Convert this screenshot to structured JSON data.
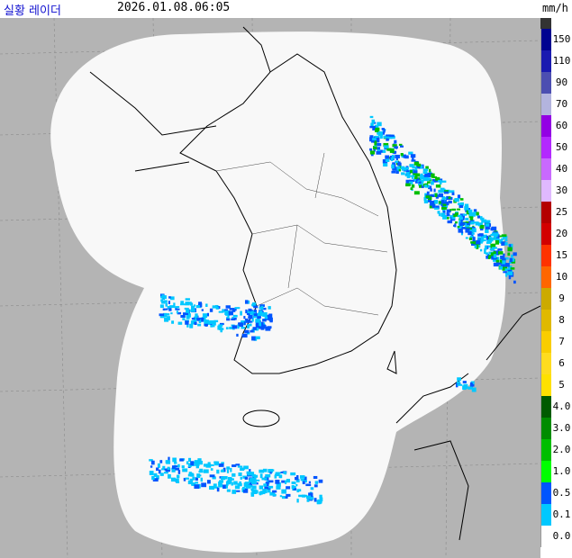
{
  "header": {
    "title": "실황 레이더",
    "time": "2026.01.08.06:05",
    "unit": "mm/h"
  },
  "legend": [
    {
      "label": "150",
      "color": "#000390"
    },
    {
      "label": "110",
      "color": "#1a1ab0"
    },
    {
      "label": "90",
      "color": "#4c4eb1"
    },
    {
      "label": "70",
      "color": "#b3b4de"
    },
    {
      "label": "60",
      "color": "#9300e4"
    },
    {
      "label": "50",
      "color": "#b329ff"
    },
    {
      "label": "40",
      "color": "#c969ff"
    },
    {
      "label": "30",
      "color": "#e0b9ff"
    },
    {
      "label": "25",
      "color": "#b40000"
    },
    {
      "label": "20",
      "color": "#d20000"
    },
    {
      "label": "15",
      "color": "#ff3300"
    },
    {
      "label": "10",
      "color": "#ff6600"
    },
    {
      "label": "9",
      "color": "#ccaa00"
    },
    {
      "label": "8",
      "color": "#e0b900"
    },
    {
      "label": "7",
      "color": "#f9cd00"
    },
    {
      "label": "6",
      "color": "#ffdc1f"
    },
    {
      "label": "5",
      "color": "#ffe100"
    },
    {
      "label": "4.0",
      "color": "#005a00"
    },
    {
      "label": "3.0",
      "color": "#008c00"
    },
    {
      "label": "2.0",
      "color": "#00be00"
    },
    {
      "label": "1.0",
      "color": "#00ff00"
    },
    {
      "label": "0.5",
      "color": "#0055ff"
    },
    {
      "label": "0.1",
      "color": "#00c8ff"
    },
    {
      "label": "0.0",
      "color": "#ffffff"
    }
  ]
}
